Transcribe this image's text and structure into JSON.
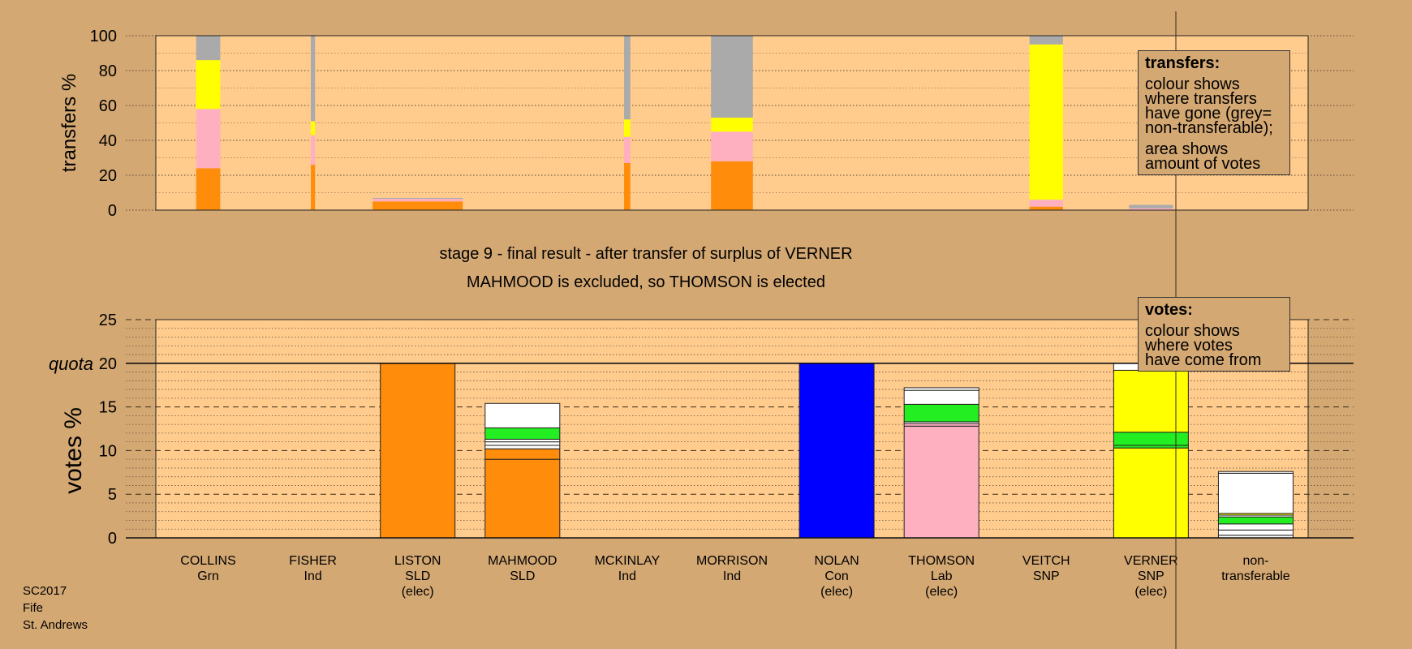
{
  "subtitle_line1": "stage 9 - final result - after transfer of surplus of VERNER",
  "subtitle_line2": "MAHMOOD is excluded, so THOMSON is elected",
  "footer": {
    "line1": "SC2017",
    "line2": "Fife",
    "line3": "St. Andrews"
  },
  "legend_transfers": {
    "title": "transfers:",
    "line1": "colour shows",
    "line2": "where transfers",
    "line3": "have gone (grey=",
    "line4": "non-transferable);",
    "line5": "area shows",
    "line6": "amount of votes"
  },
  "legend_votes": {
    "title": "votes:",
    "line1": "colour shows",
    "line2": "where votes",
    "line3": "have come from"
  },
  "colors": {
    "background": "#d4a873",
    "plot_bg": "#ffcc8d",
    "SLD": "#ff8c0a",
    "Lab": "#ffb0c0",
    "SNP": "#ffff00",
    "Grn": "#22ee22",
    "Con": "#0000ff",
    "nontransferable": "#aaaaaa",
    "other": "#ffffff"
  },
  "chart_data": [
    {
      "type": "bar",
      "name": "transfers",
      "ylabel": "transfers %",
      "ylim": [
        0,
        100
      ],
      "yticks": [
        0,
        20,
        40,
        60,
        80,
        100
      ],
      "grid": true,
      "note": "stacked 100% bars, width proportional to amount of votes transferred",
      "bars": [
        {
          "index": 0.5,
          "width": 0.23,
          "segments": [
            {
              "party": "SLD",
              "value": 24
            },
            {
              "party": "Lab",
              "value": 34
            },
            {
              "party": "SNP",
              "value": 28
            },
            {
              "party": "nontransferable",
              "value": 14
            }
          ]
        },
        {
          "index": 1.5,
          "width": 0.04,
          "segments": [
            {
              "party": "SLD",
              "value": 26
            },
            {
              "party": "Lab",
              "value": 17
            },
            {
              "party": "SNP",
              "value": 8
            },
            {
              "party": "nontransferable",
              "value": 49
            }
          ]
        },
        {
          "index": 2.5,
          "width": 0.86,
          "segments": [
            {
              "party": "SLD",
              "value": 5
            },
            {
              "party": "Lab",
              "value": 1.5
            },
            {
              "party": "nontransferable",
              "value": 0.5
            }
          ]
        },
        {
          "index": 4.5,
          "width": 0.06,
          "segments": [
            {
              "party": "SLD",
              "value": 27
            },
            {
              "party": "Lab",
              "value": 15
            },
            {
              "party": "SNP",
              "value": 10
            },
            {
              "party": "nontransferable",
              "value": 48
            }
          ]
        },
        {
          "index": 5.5,
          "width": 0.4,
          "segments": [
            {
              "party": "SLD",
              "value": 28
            },
            {
              "party": "Lab",
              "value": 17
            },
            {
              "party": "SNP",
              "value": 8
            },
            {
              "party": "nontransferable",
              "value": 47
            }
          ]
        },
        {
          "index": 8.5,
          "width": 0.32,
          "segments": [
            {
              "party": "SLD",
              "value": 2
            },
            {
              "party": "Lab",
              "value": 4
            },
            {
              "party": "SNP",
              "value": 89
            },
            {
              "party": "nontransferable",
              "value": 5
            }
          ]
        },
        {
          "index": 9.5,
          "width": 0.42,
          "segments": [
            {
              "party": "Lab",
              "value": 1
            },
            {
              "party": "nontransferable",
              "value": 2
            }
          ]
        }
      ]
    },
    {
      "type": "bar",
      "name": "votes",
      "ylabel": "votes %",
      "ylim": [
        0,
        25
      ],
      "yticks": [
        0,
        5,
        10,
        15,
        20,
        25
      ],
      "quota": 20,
      "quota_label": "quota",
      "grid": true,
      "candidates": [
        {
          "name": "COLLINS",
          "party": "Grn",
          "status": "",
          "segments": []
        },
        {
          "name": "FISHER",
          "party": "Ind",
          "status": "",
          "segments": []
        },
        {
          "name": "LISTON",
          "party": "SLD",
          "status": "(elec)",
          "segments": [
            {
              "party": "SLD",
              "value": 20
            }
          ]
        },
        {
          "name": "MAHMOOD",
          "party": "SLD",
          "status": "",
          "segments": [
            {
              "party": "SLD",
              "value": 9
            },
            {
              "party": "SLD",
              "value": 1.2
            },
            {
              "party": "other",
              "value": 0.4
            },
            {
              "party": "other",
              "value": 0.4
            },
            {
              "party": "other",
              "value": 0.3
            },
            {
              "party": "Grn",
              "value": 1.3
            },
            {
              "party": "other",
              "value": 2.8
            }
          ]
        },
        {
          "name": "MCKINLAY",
          "party": "Ind",
          "status": "",
          "segments": []
        },
        {
          "name": "MORRISON",
          "party": "Ind",
          "status": "",
          "segments": []
        },
        {
          "name": "NOLAN",
          "party": "Con",
          "status": "(elec)",
          "segments": [
            {
              "party": "Con",
              "value": 20
            }
          ]
        },
        {
          "name": "THOMSON",
          "party": "Lab",
          "status": "(elec)",
          "segments": [
            {
              "party": "Lab",
              "value": 12.8
            },
            {
              "party": "Lab",
              "value": 0.3
            },
            {
              "party": "other",
              "value": 0.2
            },
            {
              "party": "Grn",
              "value": 2
            },
            {
              "party": "other",
              "value": 1.6
            },
            {
              "party": "other",
              "value": 0.3
            }
          ]
        },
        {
          "name": "VEITCH",
          "party": "SNP",
          "status": "",
          "segments": []
        },
        {
          "name": "VERNER",
          "party": "SNP",
          "status": "(elec)",
          "segments": [
            {
              "party": "SNP",
              "value": 10.3
            },
            {
              "party": "Grn",
              "value": 0.3
            },
            {
              "party": "Grn",
              "value": 1.5
            },
            {
              "party": "SNP",
              "value": 7.1
            },
            {
              "party": "other",
              "value": 0.8
            }
          ]
        },
        {
          "name": "non-",
          "party": "transferable",
          "status": "",
          "segments": [
            {
              "party": "other",
              "value": 0.3
            },
            {
              "party": "other",
              "value": 0.6
            },
            {
              "party": "other",
              "value": 0.7
            },
            {
              "party": "Grn",
              "value": 0.8
            },
            {
              "party": "other",
              "value": 0.2
            },
            {
              "party": "SNP",
              "value": 0.2
            },
            {
              "party": "other",
              "value": 4.6
            },
            {
              "party": "other",
              "value": 0.2
            }
          ]
        }
      ]
    }
  ]
}
